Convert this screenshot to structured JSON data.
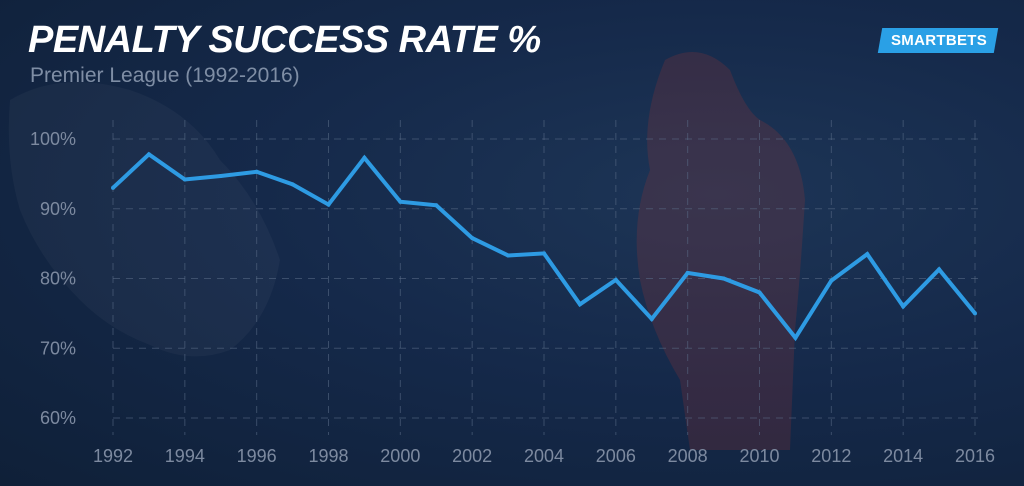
{
  "header": {
    "title": "PENALTY SUCCESS RATE %",
    "subtitle": "Premier League (1992-2016)",
    "logo_text": "SMARTBETS"
  },
  "colors": {
    "line": "#2e9be3",
    "grid": "#5b6d89",
    "logo_bg": "#2aa0e6"
  },
  "chart_data": {
    "type": "line",
    "title": "PENALTY SUCCESS RATE %",
    "subtitle": "Premier League (1992-2016)",
    "xlabel": "",
    "ylabel": "",
    "x": [
      1992,
      1993,
      1994,
      1995,
      1996,
      1997,
      1998,
      1999,
      2000,
      2001,
      2002,
      2003,
      2004,
      2005,
      2006,
      2007,
      2008,
      2009,
      2010,
      2011,
      2012,
      2013,
      2014,
      2015,
      2016
    ],
    "series": [
      {
        "name": "Penalty success rate",
        "values": [
          93,
          97.8,
          94.2,
          94.7,
          95.3,
          93.5,
          90.6,
          97.3,
          91.0,
          90.5,
          85.8,
          83.3,
          83.6,
          76.3,
          79.8,
          74.2,
          80.8,
          80.0,
          78.0,
          71.5,
          79.7,
          83.5,
          76.0,
          81.3,
          75.0
        ]
      }
    ],
    "xticks": [
      "1992",
      "1994",
      "1996",
      "1998",
      "2000",
      "2002",
      "2004",
      "2006",
      "2008",
      "2010",
      "2012",
      "2014",
      "2016"
    ],
    "yticks": [
      "100%",
      "90%",
      "80%",
      "70%",
      "60%"
    ],
    "ylim": [
      60,
      100
    ],
    "xlim": [
      1992,
      2016
    ],
    "grid": true
  }
}
